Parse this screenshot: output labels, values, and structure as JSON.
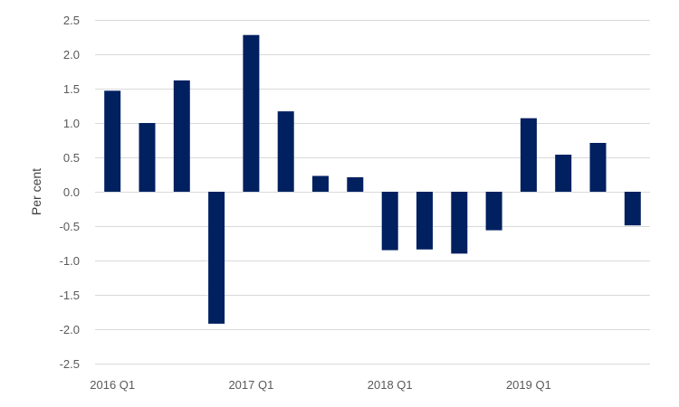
{
  "chart_data": {
    "type": "bar",
    "title": "",
    "xlabel": "",
    "ylabel": "Per cent",
    "ylim": [
      -2.5,
      2.5
    ],
    "yticks": [
      2.5,
      2.0,
      1.5,
      1.0,
      0.5,
      0.0,
      -0.5,
      -1.0,
      -1.5,
      -2.0,
      -2.5
    ],
    "ytick_labels": [
      "2.5",
      "2.0",
      "1.5",
      "1.0",
      "0.5",
      "0.0",
      "-0.5",
      "-1.0",
      "-1.5",
      "-2.0",
      "-2.5"
    ],
    "grid": true,
    "legend": "none",
    "bar_color": "#002060",
    "categories": [
      "2016 Q1",
      "2016 Q2",
      "2016 Q3",
      "2016 Q4",
      "2017 Q1",
      "2017 Q2",
      "2017 Q3",
      "2017 Q4",
      "2018 Q1",
      "2018 Q2",
      "2018 Q3",
      "2018 Q4",
      "2019 Q1",
      "2019 Q2",
      "2019 Q3",
      "2019 Q4"
    ],
    "xtick_labels": [
      {
        "category_index": 0,
        "label": "2016 Q1"
      },
      {
        "category_index": 4,
        "label": "2017 Q1"
      },
      {
        "category_index": 8,
        "label": "2018 Q1"
      },
      {
        "category_index": 12,
        "label": "2019 Q1"
      }
    ],
    "values": [
      1.47,
      1.0,
      1.62,
      -1.92,
      2.28,
      1.17,
      0.23,
      0.21,
      -0.85,
      -0.84,
      -0.9,
      -0.56,
      1.07,
      0.54,
      0.71,
      -0.49
    ]
  }
}
